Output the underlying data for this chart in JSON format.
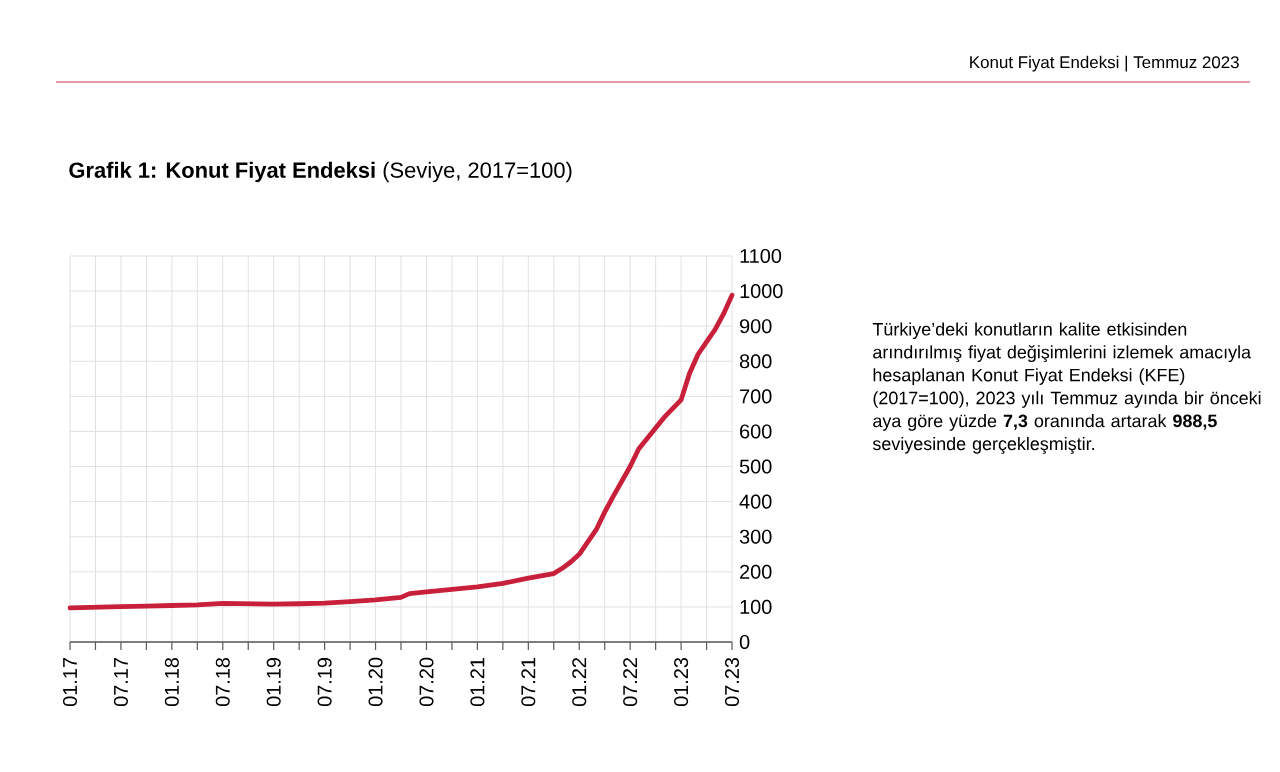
{
  "chart_data": {
    "type": "line",
    "title": "**Grafik 1: Konut Fiyat Endeksi** (Seviye, 2017=100)",
    "annotations": [
      "Konut Fiyat Endeksi | Temmuz 2023",
      "Türkiye’deki konutların kalite etkisinden arındırılmış fiyat değişimlerini izlemek amacıyla hesaplanan Konut Fiyat Endeksi (KFE) (2017=100), 2023 yılı Temmuz ayında bir önceki aya göre yüzde **7,3** oranında artarak **988,5** seviyesinde gerçekleşmiştir."
    ],
    "x": [
      "2017-01",
      "2017-04",
      "2017-07",
      "2017-10",
      "2018-01",
      "2018-04",
      "2018-07",
      "2018-10",
      "2019-01",
      "2019-04",
      "2019-07",
      "2019-10",
      "2020-01",
      "2020-04",
      "2020-05",
      "2020-07",
      "2020-10",
      "2021-01",
      "2021-04",
      "2021-07",
      "2021-10",
      "2021-11",
      "2021-12",
      "2022-01",
      "2022-03",
      "2022-04",
      "2022-05",
      "2022-07",
      "2022-08",
      "2022-10",
      "2022-11",
      "2022-12",
      "2023-01",
      "2023-02",
      "2023-03",
      "2023-04",
      "2023-05",
      "2023-06",
      "2023-07"
    ],
    "series": [
      {
        "color": "#c8203a",
        "values": [
          97,
          99,
          101,
          102,
          104,
          106,
          110,
          109,
          108,
          109,
          111,
          115,
          120,
          127,
          138,
          143,
          150,
          157,
          167,
          182,
          195,
          210,
          228,
          250,
          320,
          370,
          415,
          500,
          550,
          610,
          640,
          665,
          690,
          766,
          820,
          855,
          890,
          935,
          988.5
        ]
      }
    ],
    "xlim": [
      "2017-01",
      "2023-07"
    ],
    "xticks": [
      {
        "value": "2017-01",
        "label": "01.17"
      },
      {
        "value": "2017-04",
        "label": null
      },
      {
        "value": "2017-07",
        "label": "07.17"
      },
      {
        "value": "2017-10",
        "label": null
      },
      {
        "value": "2018-01",
        "label": "01.18"
      },
      {
        "value": "2018-04",
        "label": null
      },
      {
        "value": "2018-07",
        "label": "07.18"
      },
      {
        "value": "2018-10",
        "label": null
      },
      {
        "value": "2019-01",
        "label": "01.19"
      },
      {
        "value": "2019-04",
        "label": null
      },
      {
        "value": "2019-07",
        "label": "07.19"
      },
      {
        "value": "2019-10",
        "label": null
      },
      {
        "value": "2020-01",
        "label": "01.20"
      },
      {
        "value": "2020-04",
        "label": null
      },
      {
        "value": "2020-07",
        "label": "07.20"
      },
      {
        "value": "2020-10",
        "label": null
      },
      {
        "value": "2021-01",
        "label": "01.21"
      },
      {
        "value": "2021-04",
        "label": null
      },
      {
        "value": "2021-07",
        "label": "07.21"
      },
      {
        "value": "2021-10",
        "label": null
      },
      {
        "value": "2022-01",
        "label": "01.22"
      },
      {
        "value": "2022-04",
        "label": null
      },
      {
        "value": "2022-07",
        "label": "07.22"
      },
      {
        "value": "2022-10",
        "label": null
      },
      {
        "value": "2023-01",
        "label": "01.23"
      },
      {
        "value": "2023-04",
        "label": null
      },
      {
        "value": "2023-07",
        "label": "07.23"
      }
    ],
    "ylim": [
      0,
      1100
    ],
    "yticks": [
      0,
      100,
      200,
      300,
      400,
      500,
      600,
      700,
      800,
      900,
      1000,
      1100
    ],
    "grid": true,
    "line_style": "solid",
    "marker": "none"
  }
}
